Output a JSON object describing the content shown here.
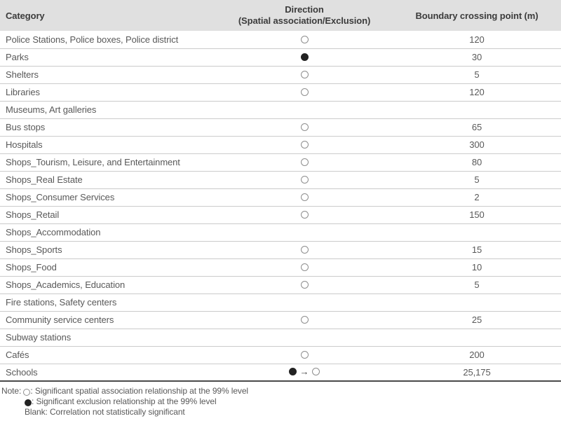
{
  "table": {
    "columns": [
      {
        "label": "Category"
      },
      {
        "label_line1": "Direction",
        "label_line2": "(Spatial association/Exclusion)"
      },
      {
        "label": "Boundary crossing point (m)"
      }
    ],
    "rows": [
      {
        "category": "Police Stations, Police boxes, Police district",
        "direction": "open",
        "boundary": "120"
      },
      {
        "category": "Parks",
        "direction": "filled",
        "boundary": "30"
      },
      {
        "category": "Shelters",
        "direction": "open",
        "boundary": "5"
      },
      {
        "category": "Libraries",
        "direction": "open",
        "boundary": "120"
      },
      {
        "category": "Museums, Art galleries",
        "direction": "",
        "boundary": ""
      },
      {
        "category": "Bus stops",
        "direction": "open",
        "boundary": "65"
      },
      {
        "category": "Hospitals",
        "direction": "open",
        "boundary": "300"
      },
      {
        "category": "Shops_Tourism, Leisure, and Entertainment",
        "direction": "open",
        "boundary": "80"
      },
      {
        "category": "Shops_Real Estate",
        "direction": "open",
        "boundary": "5"
      },
      {
        "category": "Shops_Consumer Services",
        "direction": "open",
        "boundary": "2"
      },
      {
        "category": "Shops_Retail",
        "direction": "open",
        "boundary": "150"
      },
      {
        "category": "Shops_Accommodation",
        "direction": "",
        "boundary": ""
      },
      {
        "category": "Shops_Sports",
        "direction": "open",
        "boundary": "15"
      },
      {
        "category": "Shops_Food",
        "direction": "open",
        "boundary": "10"
      },
      {
        "category": "Shops_Academics, Education",
        "direction": "open",
        "boundary": "5"
      },
      {
        "category": "Fire stations, Safety centers",
        "direction": "",
        "boundary": ""
      },
      {
        "category": "Community service centers",
        "direction": "open",
        "boundary": "25"
      },
      {
        "category": "Subway stations",
        "direction": "",
        "boundary": ""
      },
      {
        "category": "Cafés",
        "direction": "open",
        "boundary": "200"
      },
      {
        "category": "Schools",
        "direction": "filled-to-open",
        "boundary": "25,175"
      }
    ]
  },
  "symbols": {
    "open_circle": "○",
    "filled_circle": "●",
    "arrow": "→",
    "open_meaning": "Significant spatial association relationship at the 99% level",
    "filled_meaning": "Significant exclusion relationship at the 99% level",
    "blank_meaning": "Correlation not statistically significant"
  },
  "notes": {
    "label": "Note:",
    "assoc_text": ": Significant spatial association relationship at the 99% level",
    "excl_text": ": Significant exclusion relationship at the 99% level",
    "blank_text": "Blank: Correlation not statistically significant"
  },
  "colors": {
    "header_bg": "#e0e0e0",
    "header_text": "#3b3b3b",
    "body_text": "#595959",
    "row_border": "#cbcbcb",
    "bottom_rule": "#4a4a4a",
    "open_circle_stroke": "#8e8e8e",
    "filled_circle_fill": "#222222"
  }
}
